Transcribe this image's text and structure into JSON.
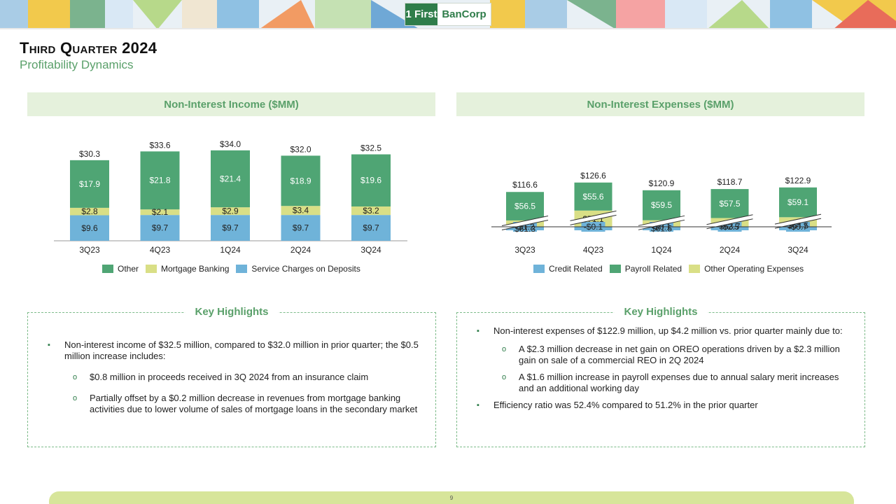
{
  "header": {
    "logo_mark": "1 First",
    "logo_text": "BanCorp"
  },
  "page": {
    "title": "Third Quarter 2024",
    "subtitle": "Profitability Dynamics",
    "page_number": "9"
  },
  "colors": {
    "green": "#4fa574",
    "lightgreen": "#d9df86",
    "blue": "#6fb3d9",
    "accent": "#5aa06a"
  },
  "chart_data": [
    {
      "type": "bar",
      "stacked": true,
      "title": "Non-Interest Income ($MM)",
      "categories": [
        "3Q23",
        "4Q23",
        "1Q24",
        "2Q24",
        "3Q24"
      ],
      "series": [
        {
          "name": "Service Charges on Deposits",
          "values": [
            9.6,
            9.7,
            9.7,
            9.7,
            9.7
          ],
          "labels": [
            "$9.6",
            "$9.7",
            "$9.7",
            "$9.7",
            "$9.7"
          ]
        },
        {
          "name": "Mortgage Banking",
          "values": [
            2.8,
            2.1,
            2.9,
            3.4,
            3.2
          ],
          "labels": [
            "$2.8",
            "$2.1",
            "$2.9",
            "$3.4",
            "$3.2"
          ]
        },
        {
          "name": "Other",
          "values": [
            17.9,
            21.8,
            21.4,
            18.9,
            19.6
          ],
          "labels": [
            "$17.9",
            "$21.8",
            "$21.4",
            "$18.9",
            "$19.6"
          ]
        }
      ],
      "totals": [
        "$30.3",
        "$33.6",
        "$34.0",
        "$32.0",
        "$32.5"
      ],
      "legend": [
        "Other",
        "Mortgage Banking",
        "Service Charges on Deposits"
      ]
    },
    {
      "type": "bar",
      "stacked": true,
      "axis_break": true,
      "title": "Non-Interest Expenses ($MM)",
      "categories": [
        "3Q23",
        "4Q23",
        "1Q24",
        "2Q24",
        "3Q24"
      ],
      "series": [
        {
          "name": "Credit Related",
          "values": [
            -1.2,
            -0.1,
            -0.1,
            -2.5,
            -0.7
          ],
          "labels": [
            "-$1.2",
            "-$0.1",
            "-$0.1",
            "-$2.5",
            "-$0.7"
          ]
        },
        {
          "name": "Other Operating Expenses",
          "values": [
            61.3,
            71.1,
            61.5,
            63.7,
            64.5
          ],
          "labels": [
            "$61.3",
            "$71.1",
            "$61.5",
            "$63.7",
            "$64.5"
          ]
        },
        {
          "name": "Payroll Related",
          "values": [
            56.5,
            55.6,
            59.5,
            57.5,
            59.1
          ],
          "labels": [
            "$56.5",
            "$55.6",
            "$59.5",
            "$57.5",
            "$59.1"
          ]
        }
      ],
      "totals": [
        "$116.6",
        "$126.6",
        "$120.9",
        "$118.7",
        "$122.9"
      ],
      "legend": [
        "Credit Related",
        "Payroll Related",
        "Other Operating Expenses"
      ]
    }
  ],
  "highlights": [
    {
      "title": "Key Highlights",
      "items": [
        {
          "text": "Non-interest income of $32.5 million, compared to $32.0 million in prior quarter; the $0.5 million increase includes:",
          "subs": [
            "$0.8 million in proceeds received in 3Q 2024 from an insurance claim",
            "Partially offset by a $0.2 million decrease in revenues from mortgage banking activities due to lower volume of sales of mortgage loans in the secondary market"
          ]
        }
      ]
    },
    {
      "title": "Key Highlights",
      "items": [
        {
          "text": "Non-interest expenses of $122.9 million, up $4.2 million vs. prior quarter mainly due to:",
          "subs": [
            "A $2.3 million decrease in net gain on OREO operations driven by a $2.3 million gain on sale of a commercial REO in 2Q 2024",
            "A $1.6 million increase in payroll expenses due to annual salary merit increases and an additional working day"
          ]
        },
        {
          "text": "Efficiency ratio was 52.4% compared to 51.2% in the prior quarter",
          "subs": []
        }
      ]
    }
  ]
}
